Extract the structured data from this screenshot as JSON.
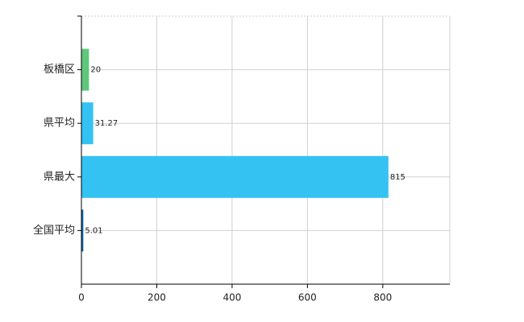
{
  "chart_data": {
    "type": "bar",
    "orientation": "horizontal",
    "categories": [
      "板橋区",
      "県平均",
      "県最大",
      "全国平均"
    ],
    "values": [
      20,
      31.27,
      815,
      5.01
    ],
    "colors": [
      "#5dc87a",
      "#34c2f2",
      "#34c2f2",
      "#0a64a8"
    ],
    "xlim": [
      0,
      978
    ],
    "xticks": [
      0,
      200,
      400,
      600,
      800
    ],
    "grid": true
  }
}
